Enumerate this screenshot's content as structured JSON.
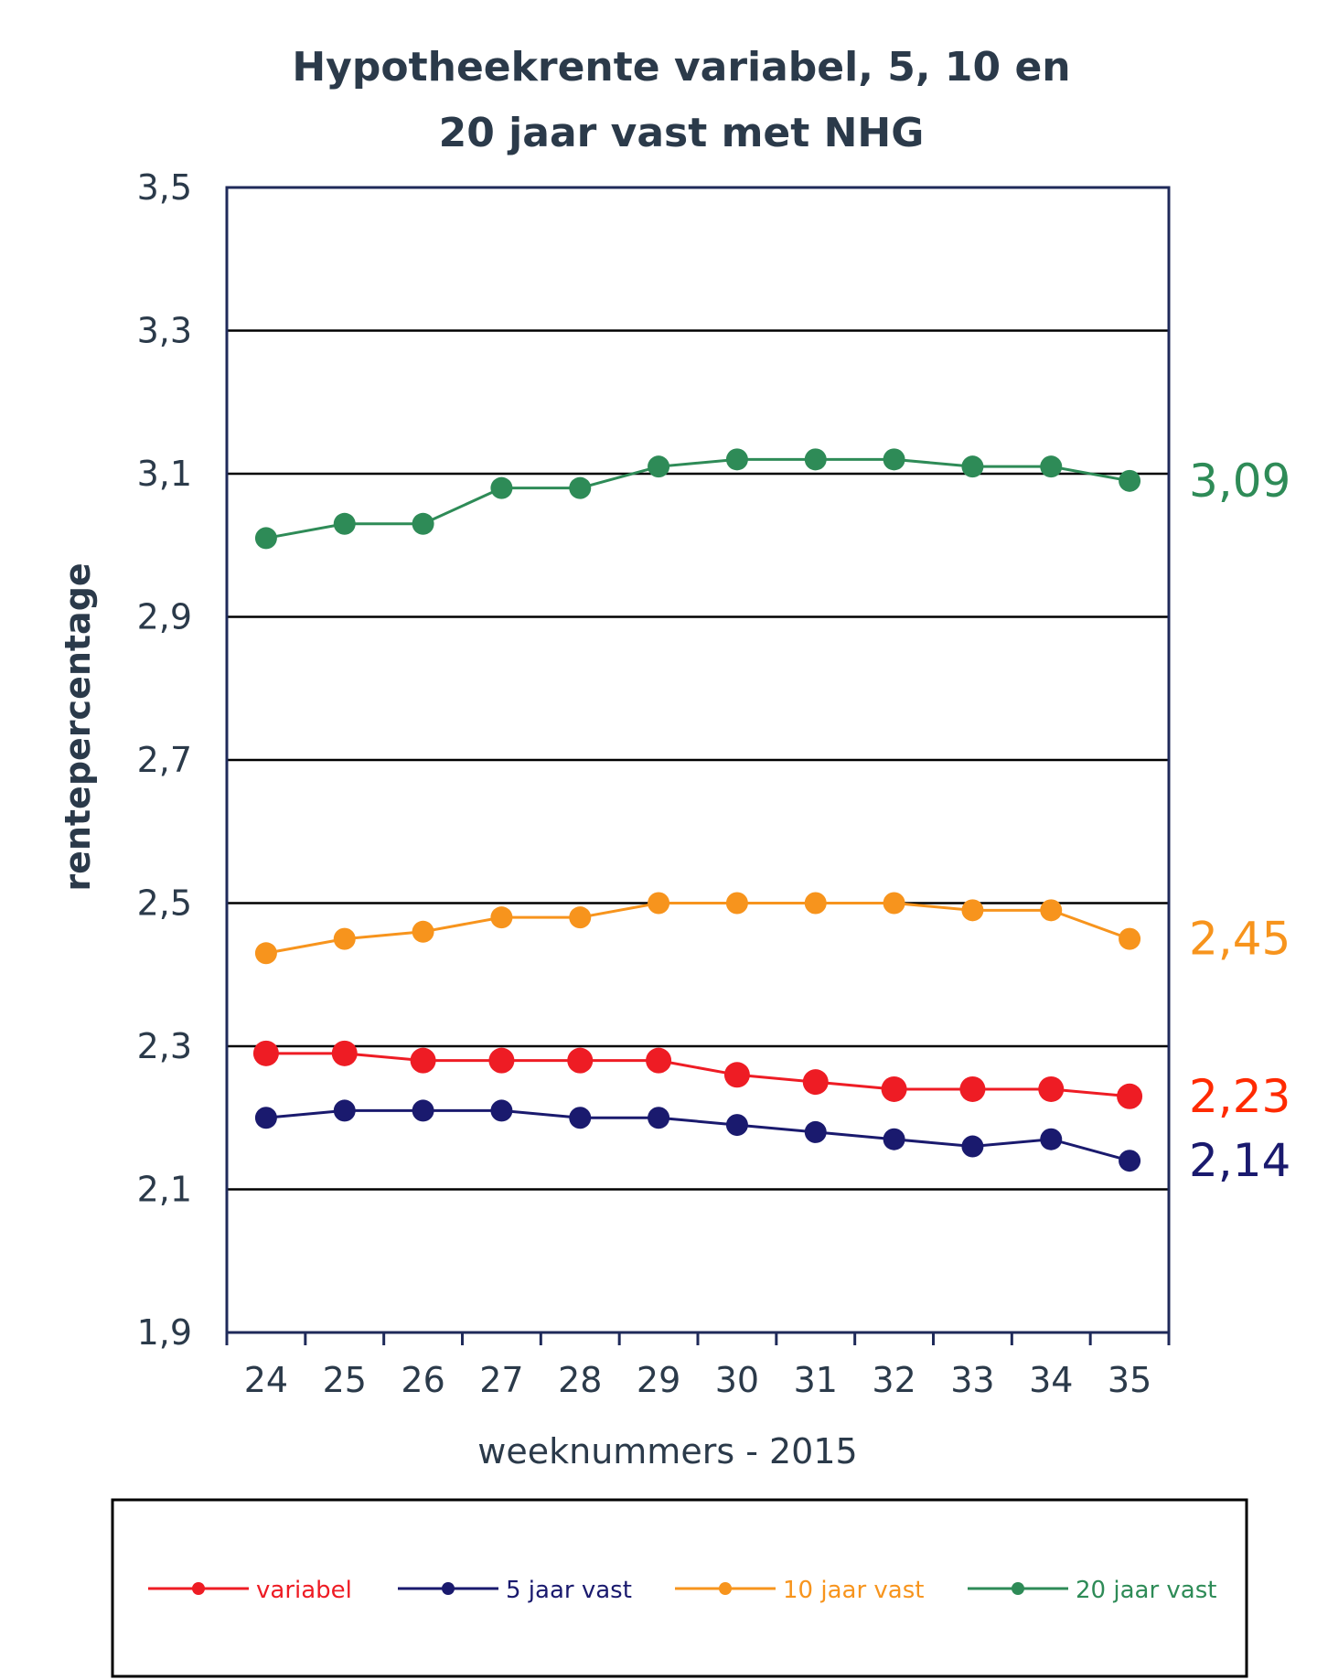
{
  "chart_data": {
    "type": "line",
    "title_line1": "Hypotheekrente variabel, 5, 10 en",
    "title_line2": "20 jaar vast met NHG",
    "xlabel": "weeknummers - 2015",
    "ylabel": "rentepercentage",
    "x": [
      "24",
      "25",
      "26",
      "27",
      "28",
      "29",
      "30",
      "31",
      "32",
      "33",
      "34",
      "35"
    ],
    "ylim": [
      1.9,
      3.5
    ],
    "yticks": [
      "1,9",
      "2,1",
      "2,3",
      "2,5",
      "2,7",
      "2,9",
      "3,1",
      "3,3",
      "3,5"
    ],
    "grid": true,
    "legend_position": "bottom",
    "series": [
      {
        "name": "variabel",
        "color": "#ee1c24",
        "marker_size": "large",
        "values": [
          2.29,
          2.29,
          2.28,
          2.28,
          2.28,
          2.28,
          2.26,
          2.25,
          2.24,
          2.24,
          2.24,
          2.23
        ],
        "end_label": "2,23"
      },
      {
        "name": "5 jaar vast",
        "color": "#1a1a6e",
        "marker_size": "medium",
        "values": [
          2.2,
          2.21,
          2.21,
          2.21,
          2.2,
          2.2,
          2.19,
          2.18,
          2.17,
          2.16,
          2.17,
          2.14
        ],
        "end_label": "2,14"
      },
      {
        "name": "10 jaar vast",
        "color": "#f7941d",
        "marker_size": "medium",
        "values": [
          2.43,
          2.45,
          2.46,
          2.48,
          2.48,
          2.5,
          2.5,
          2.5,
          2.5,
          2.49,
          2.49,
          2.45
        ],
        "end_label": "2,45"
      },
      {
        "name": "20 jaar vast",
        "color": "#2e8b57",
        "marker_size": "medium",
        "values": [
          3.01,
          3.03,
          3.03,
          3.08,
          3.08,
          3.11,
          3.12,
          3.12,
          3.12,
          3.11,
          3.11,
          3.09
        ],
        "end_label": "3,09"
      }
    ],
    "end_label_colors": [
      "#ff2a00",
      "#1a1a6e",
      "#f7941d",
      "#2e8b57"
    ]
  },
  "colors": {
    "axis": "#1f2a5a",
    "grid": "#000000",
    "text": "#2b3a4a"
  }
}
